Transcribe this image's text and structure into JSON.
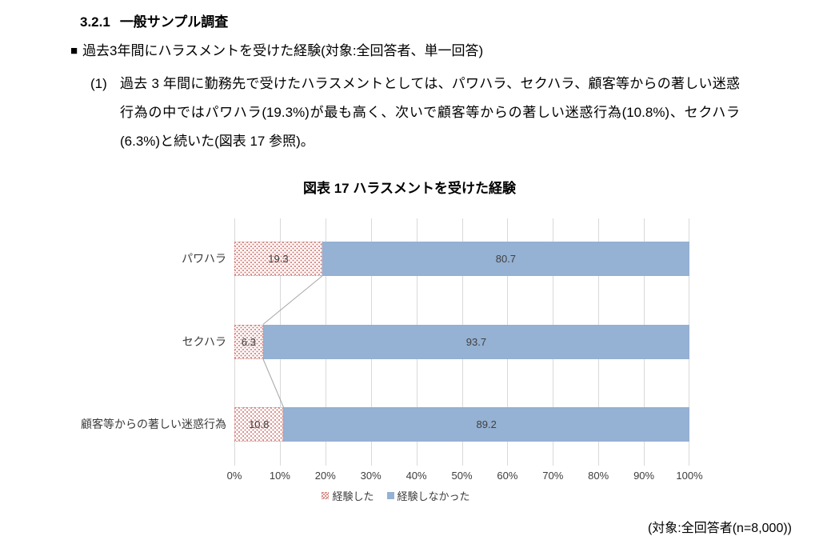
{
  "document": {
    "section_number": "3.2.1",
    "section_title": "一般サンプル調査",
    "bullet": "■",
    "heading": "過去3年間にハラスメントを受けた経験(対象:全回答者、単一回答)",
    "paragraph_number": "(1)",
    "paragraph_text": "過去 3 年間に勤務先で受けたハラスメントとしては、パワハラ、セクハラ、顧客等からの著しい迷惑行為の中ではパワハラ(19.3%)が最も高く、次いで顧客等からの著しい迷惑行為(10.8%)、セクハラ(6.3%)と続いた(図表 17 参照)。",
    "footnote": "(対象:全回答者(n=8,000))"
  },
  "chart_data": {
    "type": "bar",
    "orientation": "horizontal",
    "stacked": true,
    "title": "図表 17 ハラスメントを受けた経験",
    "categories": [
      "パワハラ",
      "セクハラ",
      "顧客等からの著しい迷惑行為"
    ],
    "series": [
      {
        "name": "経験した",
        "values": [
          19.3,
          6.3,
          10.8
        ],
        "style": "dotted-red"
      },
      {
        "name": "経験しなかった",
        "values": [
          80.7,
          93.7,
          89.2
        ],
        "style": "solid-blue"
      }
    ],
    "x_ticks": [
      "0%",
      "10%",
      "20%",
      "30%",
      "40%",
      "50%",
      "60%",
      "70%",
      "80%",
      "90%",
      "100%"
    ],
    "xlim": [
      0,
      100
    ],
    "grid": true,
    "legend_position": "bottom",
    "colors": {
      "experienced_dot": "#d4837f",
      "experienced_border": "#cf8a85",
      "not_experienced_fill": "#95b1d3",
      "gridline": "#d9d9d9",
      "connector": "#a6a6a6",
      "label_text": "#404040"
    }
  }
}
